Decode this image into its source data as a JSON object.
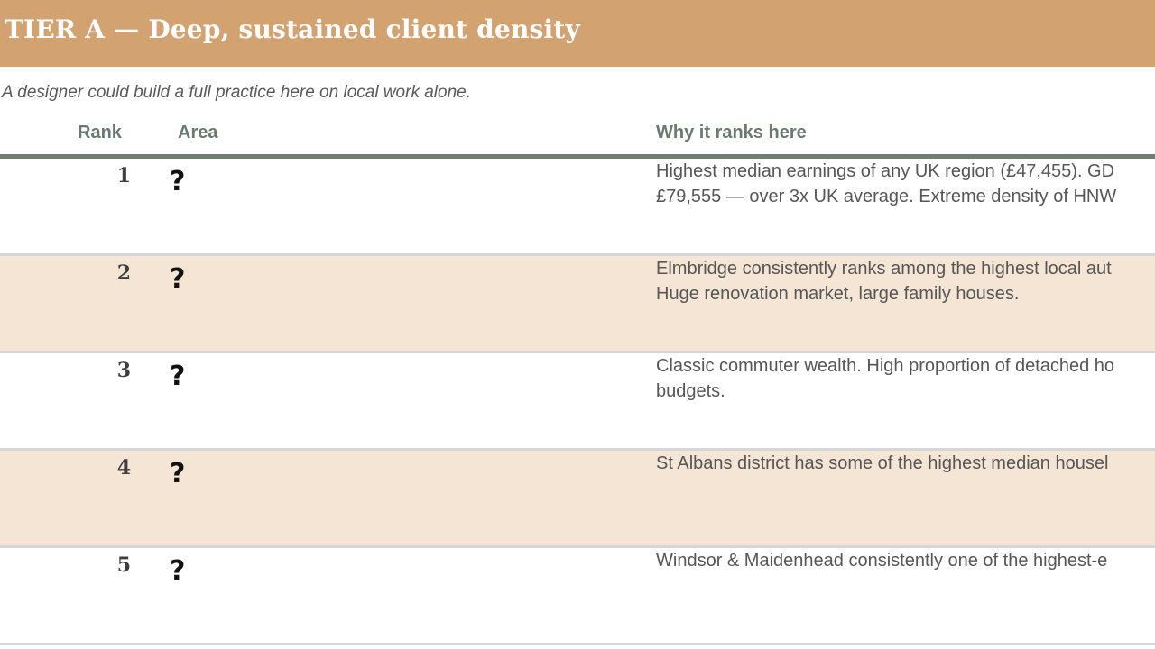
{
  "tier": {
    "title": "TIER A — Deep, sustained client density",
    "subtitle": "A designer could build a full practice here on local work alone."
  },
  "table": {
    "headers": {
      "rank": "Rank",
      "area": "Area",
      "why": "Why it ranks here"
    },
    "rows": [
      {
        "rank": "1",
        "area": "?",
        "why_lines": [
          "Highest median earnings of any UK region (£47,455). GD",
          "£79,555 — over 3x UK average. Extreme density of HNW"
        ]
      },
      {
        "rank": "2",
        "area": "?",
        "why_lines": [
          "Elmbridge consistently ranks among the highest local aut",
          "Huge renovation market, large family houses."
        ]
      },
      {
        "rank": "3",
        "area": "?",
        "why_lines": [
          "Classic commuter wealth. High proportion of detached ho",
          "budgets."
        ]
      },
      {
        "rank": "4",
        "area": "?",
        "why_lines": [
          "St Albans district has some of the highest median housel"
        ]
      },
      {
        "rank": "5",
        "area": "?",
        "why_lines": [
          "Windsor & Maidenhead consistently one of the highest-e"
        ]
      }
    ]
  },
  "colors": {
    "banner": "#d3a271",
    "alt_row": "#f5e5d5",
    "header_text": "#6b7a6e",
    "header_rule": "#707d73"
  }
}
